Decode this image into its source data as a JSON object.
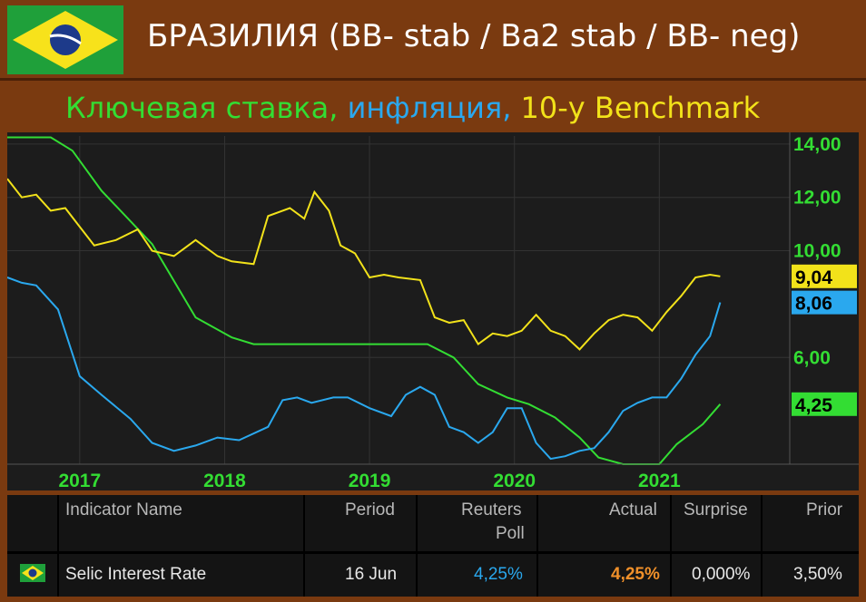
{
  "header": {
    "title": "БРАЗИЛИЯ (BB- stab / Ba2 stab / BB- neg)",
    "subtitle_part1": "Ключевая ставка,",
    "subtitle_part2": "инфляция,",
    "subtitle_part3": "10-y Benchmark",
    "colors": {
      "part1": "#33dd33",
      "part2": "#2aa8ee",
      "part3": "#f2e21a"
    }
  },
  "chart_data": {
    "type": "line",
    "x_ticks": [
      "2017",
      "2018",
      "2019",
      "2020",
      "2021"
    ],
    "y_ticks": [
      "14,00",
      "12,00",
      "10,00",
      "6,00"
    ],
    "ylim": [
      2.0,
      14.3
    ],
    "xlim": [
      2016.5,
      2021.9
    ],
    "grid": true,
    "series": [
      {
        "color": "#33dd33",
        "end_label": "4,25",
        "x": [
          2016.5,
          2016.8,
          2016.95,
          2017.15,
          2017.5,
          2017.8,
          2018.05,
          2018.2,
          2018.4,
          2019.0,
          2019.4,
          2019.58,
          2019.75,
          2019.95,
          2020.1,
          2020.28,
          2020.45,
          2020.58,
          2020.75,
          2021.0,
          2021.12,
          2021.3,
          2021.42
        ],
        "y": [
          14.25,
          14.25,
          13.75,
          12.25,
          10.25,
          7.5,
          6.75,
          6.5,
          6.5,
          6.5,
          6.5,
          6.0,
          5.0,
          4.5,
          4.25,
          3.75,
          3.0,
          2.25,
          2.0,
          2.0,
          2.75,
          3.5,
          4.25
        ]
      },
      {
        "color": "#2aa8ee",
        "end_label": "8,06",
        "x": [
          2016.5,
          2016.6,
          2016.7,
          2016.85,
          2017.0,
          2017.15,
          2017.35,
          2017.5,
          2017.65,
          2017.8,
          2017.95,
          2018.1,
          2018.3,
          2018.4,
          2018.5,
          2018.6,
          2018.75,
          2018.85,
          2019.0,
          2019.15,
          2019.25,
          2019.35,
          2019.45,
          2019.55,
          2019.65,
          2019.75,
          2019.85,
          2019.95,
          2020.05,
          2020.15,
          2020.25,
          2020.35,
          2020.45,
          2020.55,
          2020.65,
          2020.75,
          2020.85,
          2020.95,
          2021.05,
          2021.15,
          2021.25,
          2021.35,
          2021.42
        ],
        "y": [
          9.0,
          8.8,
          8.7,
          7.8,
          5.3,
          4.6,
          3.7,
          2.8,
          2.5,
          2.7,
          3.0,
          2.9,
          3.4,
          4.4,
          4.5,
          4.3,
          4.5,
          4.5,
          4.1,
          3.8,
          4.6,
          4.9,
          4.6,
          3.4,
          3.2,
          2.8,
          3.2,
          4.1,
          4.1,
          2.8,
          2.2,
          2.3,
          2.5,
          2.6,
          3.2,
          4.0,
          4.3,
          4.5,
          4.5,
          5.2,
          6.1,
          6.8,
          8.06
        ]
      },
      {
        "color": "#f2e21a",
        "end_label": "9,04",
        "x": [
          2016.5,
          2016.6,
          2016.7,
          2016.8,
          2016.9,
          2017.0,
          2017.1,
          2017.25,
          2017.4,
          2017.5,
          2017.65,
          2017.8,
          2017.95,
          2018.05,
          2018.2,
          2018.3,
          2018.45,
          2018.55,
          2018.62,
          2018.72,
          2018.8,
          2018.9,
          2019.0,
          2019.1,
          2019.2,
          2019.35,
          2019.45,
          2019.55,
          2019.65,
          2019.75,
          2019.85,
          2019.95,
          2020.05,
          2020.15,
          2020.25,
          2020.35,
          2020.45,
          2020.55,
          2020.65,
          2020.75,
          2020.85,
          2020.95,
          2021.05,
          2021.15,
          2021.25,
          2021.35,
          2021.42
        ],
        "y": [
          12.7,
          12.0,
          12.1,
          11.5,
          11.6,
          10.9,
          10.2,
          10.4,
          10.8,
          10.0,
          9.8,
          10.4,
          9.8,
          9.6,
          9.5,
          11.3,
          11.6,
          11.2,
          12.2,
          11.5,
          10.2,
          9.9,
          9.0,
          9.1,
          9.0,
          8.9,
          7.5,
          7.3,
          7.4,
          6.5,
          6.9,
          6.8,
          7.0,
          7.6,
          7.0,
          6.8,
          6.3,
          6.9,
          7.4,
          7.6,
          7.5,
          7.0,
          7.7,
          8.3,
          9.0,
          9.1,
          9.04
        ]
      }
    ]
  },
  "table": {
    "headers": [
      "Indicator Name",
      "Period",
      "Reuters",
      "Poll",
      "Actual",
      "Surprise",
      "Prior"
    ],
    "row": {
      "name": "Selic Interest Rate",
      "period": "16 Jun",
      "poll": "4,25%",
      "actual": "4,25%",
      "surprise": "0,000%",
      "prior": "3,50%"
    },
    "colors": {
      "poll": "#2aa8ee",
      "actual": "#f0902a"
    }
  }
}
